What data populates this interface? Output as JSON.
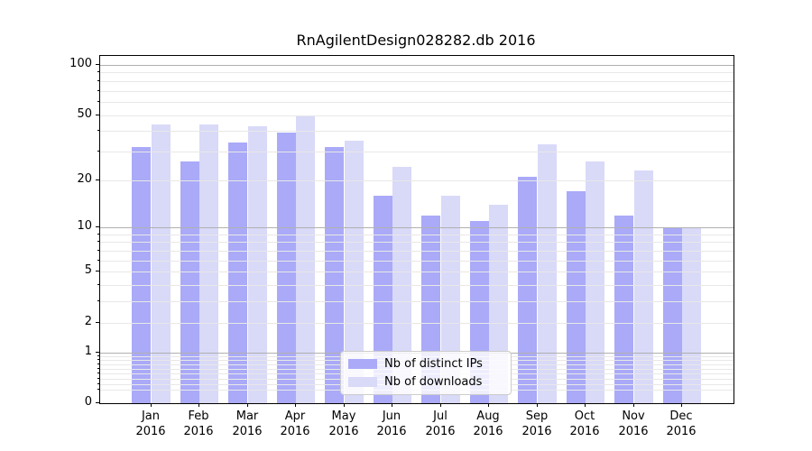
{
  "title": "RnAgilentDesign028282.db 2016",
  "chart_data": {
    "type": "bar",
    "yscale": "log1p",
    "title": "RnAgilentDesign028282.db 2016",
    "categories": [
      "Jan",
      "Feb",
      "Mar",
      "Apr",
      "May",
      "Jun",
      "Jul",
      "Aug",
      "Sep",
      "Oct",
      "Nov",
      "Dec"
    ],
    "year_label": "2016",
    "series": [
      {
        "name": "Nb of distinct IPs",
        "color": "#aaaaf8",
        "values": [
          32,
          26,
          34,
          39,
          32,
          16,
          12,
          11,
          21,
          17,
          12,
          10
        ]
      },
      {
        "name": "Nb of downloads",
        "color": "#d9d9f8",
        "values": [
          44,
          44,
          43,
          50,
          35,
          24,
          16,
          14,
          33,
          26,
          23,
          10
        ]
      }
    ],
    "ylim": [
      0,
      113
    ],
    "yticks": [
      0,
      1,
      2,
      5,
      10,
      20,
      50,
      100
    ],
    "ytick_labels": [
      "0",
      "1",
      "2",
      "5",
      "10",
      "20",
      "50",
      "100"
    ],
    "major_gridlines": [
      1,
      10,
      100
    ],
    "minor_gridlines": [
      0.2,
      0.3,
      0.4,
      0.5,
      0.6,
      0.7,
      0.8,
      0.9,
      2,
      3,
      4,
      5,
      6,
      7,
      8,
      9,
      20,
      30,
      40,
      50,
      60,
      70,
      80,
      90
    ],
    "grid": true,
    "legend_position": "bottom-center",
    "colors": {
      "major_grid": "#b0b0b0",
      "minor_grid": "#e8e8e8",
      "spine": "#000000",
      "background": "#ffffff",
      "text": "#000000"
    }
  }
}
